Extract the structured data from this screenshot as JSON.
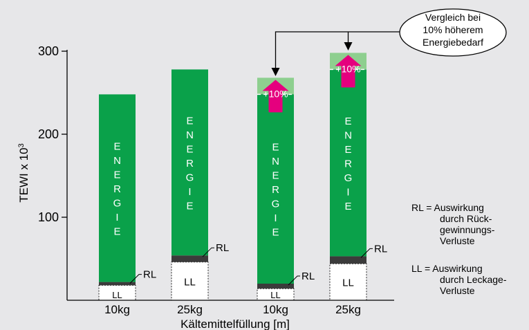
{
  "chart_data": {
    "type": "bar",
    "stacked": true,
    "ylabel_prefix": "TEWI x 10",
    "ylabel_sup": "3",
    "xlabel": "Kältemittelfüllung [m]",
    "yticks": [
      100,
      200,
      300
    ],
    "ylim": [
      0,
      300
    ],
    "categories": [
      "10kg",
      "25kg",
      "10kg",
      "25kg"
    ],
    "segments": [
      {
        "name": "LL",
        "values": [
          18,
          46,
          14,
          44
        ]
      },
      {
        "name": "RL",
        "values": [
          4,
          8,
          6,
          9
        ]
      },
      {
        "name": "ENERGIE",
        "values": [
          226,
          224,
          226,
          227
        ]
      }
    ],
    "increase": {
      "label": "+10%",
      "applies_to": [
        2,
        3
      ],
      "top_values": [
        268,
        298
      ],
      "dashed_level_values": [
        248,
        278
      ]
    },
    "segment_labels": {
      "ll": "LL",
      "rl": "RL",
      "energy_letters": [
        "E",
        "N",
        "E",
        "R",
        "G",
        "I",
        "E"
      ]
    },
    "callout": {
      "lines": [
        "Vergleich bei",
        "10% höherem",
        "Energiebedarf"
      ]
    },
    "legend": [
      {
        "key": "RL",
        "lines": [
          "RL = Auswirkung",
          "durch Rück-",
          "gewinnungs-",
          "Verluste"
        ]
      },
      {
        "key": "LL",
        "lines": [
          "LL = Auswirkung",
          "durch Leckage-",
          "Verluste"
        ]
      }
    ],
    "colors": {
      "background": "#e7e7e9",
      "energy": "#0aa14a",
      "increase": "#8ecf8f",
      "rl": "#3b3b3b",
      "ll": "#ffffff",
      "arrow": "#e5007e",
      "axis": "#000000"
    }
  }
}
